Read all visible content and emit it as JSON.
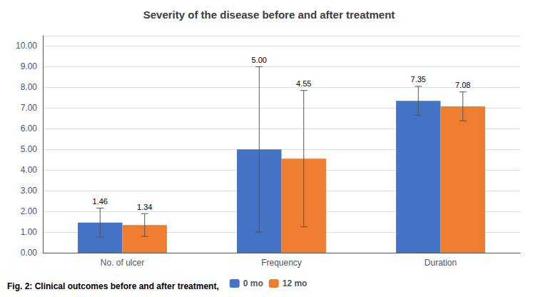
{
  "chart_data": {
    "type": "bar",
    "title": "Severity of the disease before and after treatment",
    "categories": [
      "No. of ulcer",
      "Frequency",
      "Duration"
    ],
    "series": [
      {
        "name": "0 mo",
        "color": "#4472C4",
        "values": [
          1.46,
          5.0,
          7.35
        ],
        "value_labels": [
          "1.46",
          "5.00",
          "7.35"
        ],
        "errors": [
          0.7,
          4.0,
          0.7
        ]
      },
      {
        "name": "12 mo",
        "color": "#ED7D31",
        "values": [
          1.34,
          4.55,
          7.08
        ],
        "value_labels": [
          "1.34",
          "4.55",
          "7.08"
        ],
        "errors": [
          0.55,
          3.3,
          0.7
        ]
      }
    ],
    "ylim": [
      0,
      10.5
    ],
    "yticks": [
      {
        "value": 0.0,
        "label": "0.00"
      },
      {
        "value": 1.0,
        "label": "1.00"
      },
      {
        "value": 2.0,
        "label": "2.00"
      },
      {
        "value": 3.0,
        "label": "3.00"
      },
      {
        "value": 4.0,
        "label": "4.00"
      },
      {
        "value": 5.0,
        "label": "5.00"
      },
      {
        "value": 6.0,
        "label": "6.00"
      },
      {
        "value": 7.0,
        "label": "7.00"
      },
      {
        "value": 8.0,
        "label": "8.00"
      },
      {
        "value": 9.0,
        "label": "9.00"
      },
      {
        "value": 10.0,
        "label": "10.00"
      }
    ],
    "grid": true,
    "data_labels": true,
    "legend": "bottom",
    "caption": "Fig. 2: Clinical outcomes before and after treatment,"
  }
}
